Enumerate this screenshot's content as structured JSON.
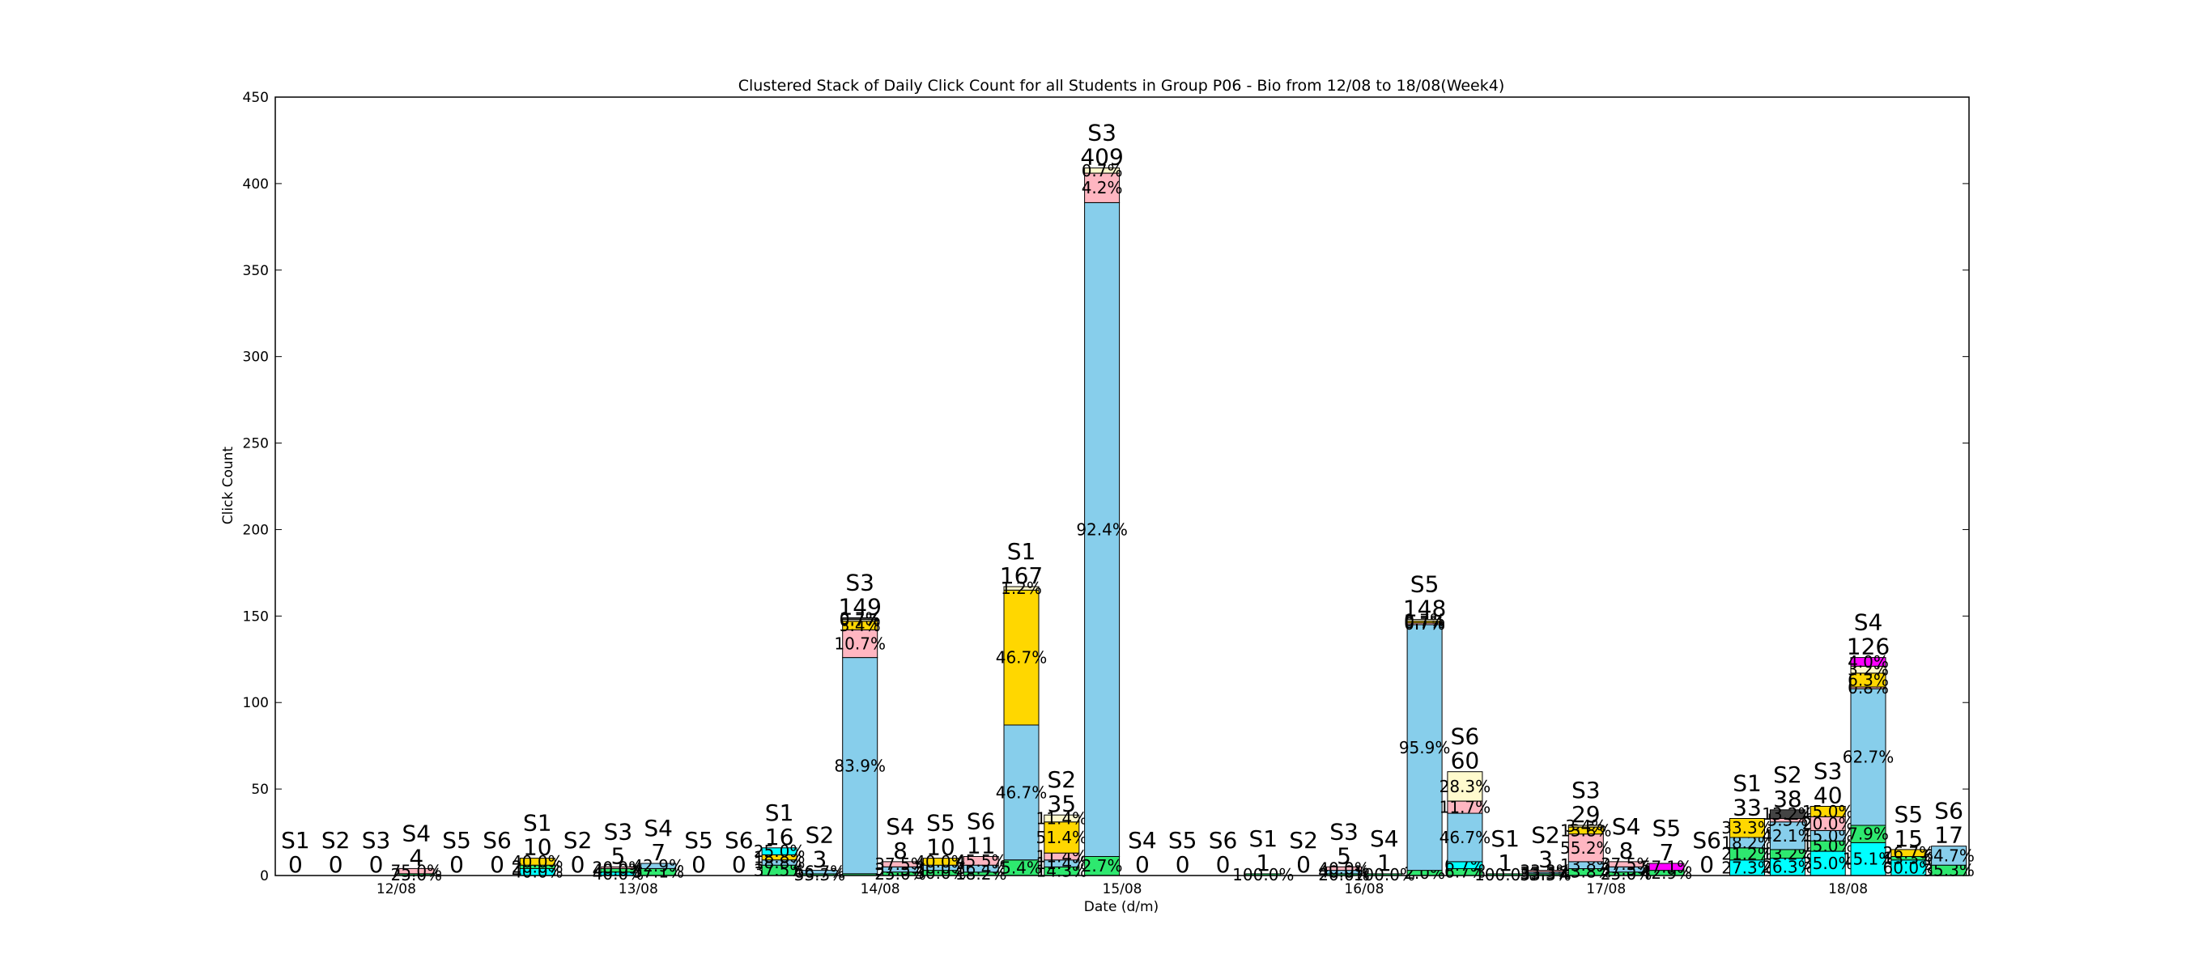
{
  "chart_data": {
    "type": "bar",
    "stacked": true,
    "clustered": true,
    "title": "Clustered Stack of Daily Click Count for all Students in Group P06 - Bio from 12/08 to 18/08(Week4)",
    "xlabel": "Date (d/m)",
    "ylabel": "Click Count",
    "ylim": [
      0,
      450
    ],
    "yticks": [
      0,
      50,
      100,
      150,
      200,
      250,
      300,
      350,
      400,
      450
    ],
    "grid": false,
    "categories": [
      "12/08",
      "13/08",
      "14/08",
      "15/08",
      "16/08",
      "17/08",
      "18/08"
    ],
    "students": [
      "S1",
      "S2",
      "S3",
      "S4",
      "S5",
      "S6"
    ],
    "segment_colors": [
      "#00FFFF",
      "#2EE86F",
      "#87CEEB",
      "#FFB6C1",
      "#FFD700",
      "#FFFACD",
      "#444444",
      "#FF00FF"
    ],
    "groups": [
      {
        "date": "12/08",
        "bars": [
          {
            "student": "S1",
            "total": "0",
            "segments": []
          },
          {
            "student": "S2",
            "total": "0",
            "segments": []
          },
          {
            "student": "S3",
            "total": "0",
            "segments": []
          },
          {
            "student": "S4",
            "total": "4",
            "segments": [
              {
                "value": 1,
                "color": 1,
                "label": "25.0%"
              },
              {
                "value": 3,
                "color": 3,
                "label": "75.0%"
              }
            ]
          },
          {
            "student": "S5",
            "total": "0",
            "segments": []
          },
          {
            "student": "S6",
            "total": "0",
            "segments": []
          }
        ]
      },
      {
        "date": "13/08",
        "bars": [
          {
            "student": "S1",
            "total": "10",
            "segments": [
              {
                "value": 4,
                "color": 0,
                "label": "40.0%"
              },
              {
                "value": 2,
                "color": 1,
                "label": "20.0%"
              },
              {
                "value": 4,
                "color": 4,
                "label": "40.0%"
              }
            ]
          },
          {
            "student": "S2",
            "total": "0",
            "segments": []
          },
          {
            "student": "S3",
            "total": "5",
            "segments": [
              {
                "value": 2,
                "color": 0,
                "label": "40.0%"
              },
              {
                "value": 2,
                "color": 1,
                "label": "40.0%"
              },
              {
                "value": 1,
                "color": 3,
                "label": "20.0%"
              }
            ]
          },
          {
            "student": "S4",
            "total": "7",
            "segments": [
              {
                "value": 4,
                "color": 1,
                "label": "57.1%"
              },
              {
                "value": 3,
                "color": 2,
                "label": "42.9%"
              }
            ]
          },
          {
            "student": "S5",
            "total": "0",
            "segments": []
          },
          {
            "student": "S6",
            "total": "0",
            "segments": []
          }
        ]
      },
      {
        "date": "14/08",
        "bars": [
          {
            "student": "S1",
            "total": "16",
            "segments": [
              {
                "value": 6,
                "color": 1,
                "label": "37.5%"
              },
              {
                "value": 3,
                "color": 2,
                "label": "18.8%"
              },
              {
                "value": 3,
                "color": 4,
                "label": "18.8%"
              },
              {
                "value": 4,
                "color": 0,
                "label": "25.0%"
              }
            ]
          },
          {
            "student": "S2",
            "total": "3",
            "segments": [
              {
                "value": 1,
                "color": 1,
                "label": "33.3%"
              },
              {
                "value": 2,
                "color": 2,
                "label": "66.7%"
              }
            ]
          },
          {
            "student": "S3",
            "total": "149",
            "segments": [
              {
                "value": 1,
                "color": 1,
                "label": ""
              },
              {
                "value": 125,
                "color": 2,
                "label": "83.9%"
              },
              {
                "value": 16,
                "color": 3,
                "label": "10.7%"
              },
              {
                "value": 5,
                "color": 4,
                "label": "3.4%"
              },
              {
                "value": 1,
                "color": 5,
                "label": "0.7%"
              },
              {
                "value": 1,
                "color": 6,
                "label": "0.7%"
              }
            ]
          },
          {
            "student": "S4",
            "total": "8",
            "segments": [
              {
                "value": 2,
                "color": 1,
                "label": "25.0%"
              },
              {
                "value": 3,
                "color": 2,
                "label": "37.5%"
              },
              {
                "value": 3,
                "color": 3,
                "label": "37.5%"
              }
            ]
          },
          {
            "student": "S5",
            "total": "10",
            "segments": [
              {
                "value": 3,
                "color": 1,
                "label": "30.0%"
              },
              {
                "value": 3,
                "color": 2,
                "label": "30.0%"
              },
              {
                "value": 4,
                "color": 4,
                "label": "40.0%"
              }
            ]
          },
          {
            "student": "S6",
            "total": "11",
            "segments": [
              {
                "value": 2,
                "color": 1,
                "label": "18.2%"
              },
              {
                "value": 4,
                "color": 2,
                "label": "36.4%"
              },
              {
                "value": 5,
                "color": 3,
                "label": "45.5%"
              }
            ]
          }
        ]
      },
      {
        "date": "15/08",
        "bars": [
          {
            "student": "S1",
            "total": "167",
            "segments": [
              {
                "value": 9,
                "color": 1,
                "label": "5.4%"
              },
              {
                "value": 78,
                "color": 2,
                "label": "46.7%"
              },
              {
                "value": 78,
                "color": 4,
                "label": "46.7%"
              },
              {
                "value": 2,
                "color": 5,
                "label": "1.2%"
              }
            ]
          },
          {
            "student": "S2",
            "total": "35",
            "segments": [
              {
                "value": 5,
                "color": 1,
                "label": "14.3%"
              },
              {
                "value": 4,
                "color": 2,
                "label": "11.4%"
              },
              {
                "value": 4,
                "color": 3,
                "label": "11.4%"
              },
              {
                "value": 18,
                "color": 4,
                "label": "51.4%"
              },
              {
                "value": 4,
                "color": 5,
                "label": "11.4%"
              }
            ]
          },
          {
            "student": "S3",
            "total": "409",
            "segments": [
              {
                "value": 11,
                "color": 1,
                "label": "2.7%"
              },
              {
                "value": 378,
                "color": 2,
                "label": "92.4%"
              },
              {
                "value": 17,
                "color": 3,
                "label": "4.2%"
              },
              {
                "value": 3,
                "color": 5,
                "label": "0.7%"
              }
            ]
          },
          {
            "student": "S4",
            "total": "0",
            "segments": []
          },
          {
            "student": "S5",
            "total": "0",
            "segments": []
          },
          {
            "student": "S6",
            "total": "0",
            "segments": []
          }
        ]
      },
      {
        "date": "16/08",
        "bars": [
          {
            "student": "S1",
            "total": "1",
            "segments": [
              {
                "value": 1,
                "color": 1,
                "label": "100.0%"
              }
            ]
          },
          {
            "student": "S2",
            "total": "0",
            "segments": []
          },
          {
            "student": "S3",
            "total": "5",
            "segments": [
              {
                "value": 1,
                "color": 1,
                "label": "20.0%"
              },
              {
                "value": 2,
                "color": 2,
                "label": "40.0%"
              },
              {
                "value": 2,
                "color": 3,
                "label": "40.0%"
              }
            ]
          },
          {
            "student": "S4",
            "total": "1",
            "segments": [
              {
                "value": 1,
                "color": 1,
                "label": "100.0%"
              }
            ]
          },
          {
            "student": "S5",
            "total": "148",
            "segments": [
              {
                "value": 3,
                "color": 1,
                "label": "2.0%"
              },
              {
                "value": 142,
                "color": 2,
                "label": "95.9%"
              },
              {
                "value": 1,
                "color": 3,
                "label": "0.7%"
              },
              {
                "value": 1,
                "color": 4,
                "label": "0.7%"
              },
              {
                "value": 1,
                "color": 5,
                "label": "0.7%"
              }
            ]
          },
          {
            "student": "S6",
            "total": "60",
            "segments": [
              {
                "value": 4,
                "color": 1,
                "label": "6.7%"
              },
              {
                "value": 4,
                "color": 0,
                "label": "6.7%"
              },
              {
                "value": 28,
                "color": 2,
                "label": "46.7%"
              },
              {
                "value": 7,
                "color": 3,
                "label": "11.7%"
              },
              {
                "value": 17,
                "color": 5,
                "label": "28.3%"
              }
            ]
          }
        ]
      },
      {
        "date": "17/08",
        "bars": [
          {
            "student": "S1",
            "total": "1",
            "segments": [
              {
                "value": 1,
                "color": 1,
                "label": "100.0%"
              }
            ]
          },
          {
            "student": "S2",
            "total": "3",
            "segments": [
              {
                "value": 1,
                "color": 1,
                "label": "33.3%"
              },
              {
                "value": 1,
                "color": 2,
                "label": "33.3%"
              },
              {
                "value": 1,
                "color": 3,
                "label": "33.3%"
              }
            ]
          },
          {
            "student": "S3",
            "total": "29",
            "segments": [
              {
                "value": 4,
                "color": 1,
                "label": "13.8%"
              },
              {
                "value": 4,
                "color": 2,
                "label": "13.8%"
              },
              {
                "value": 16,
                "color": 3,
                "label": "55.2%"
              },
              {
                "value": 4,
                "color": 4,
                "label": "13.8%"
              },
              {
                "value": 1,
                "color": 5,
                "label": "3.4%"
              }
            ]
          },
          {
            "student": "S4",
            "total": "8",
            "segments": [
              {
                "value": 2,
                "color": 1,
                "label": "25.0%"
              },
              {
                "value": 3,
                "color": 2,
                "label": "37.5%"
              },
              {
                "value": 3,
                "color": 3,
                "label": "37.5%"
              }
            ]
          },
          {
            "student": "S5",
            "total": "7",
            "segments": [
              {
                "value": 3,
                "color": 1,
                "label": "42.9%"
              },
              {
                "value": 4,
                "color": 7,
                "label": "57.1%"
              }
            ]
          },
          {
            "student": "S6",
            "total": "0",
            "segments": []
          }
        ]
      },
      {
        "date": "18/08",
        "bars": [
          {
            "student": "S1",
            "total": "33",
            "segments": [
              {
                "value": 9,
                "color": 0,
                "label": "27.3%"
              },
              {
                "value": 7,
                "color": 1,
                "label": "21.2%"
              },
              {
                "value": 6,
                "color": 2,
                "label": "18.2%"
              },
              {
                "value": 11,
                "color": 4,
                "label": "33.3%"
              }
            ]
          },
          {
            "student": "S2",
            "total": "38",
            "segments": [
              {
                "value": 10,
                "color": 0,
                "label": "26.3%"
              },
              {
                "value": 5,
                "color": 1,
                "label": "13.2%"
              },
              {
                "value": 16,
                "color": 2,
                "label": "42.1%"
              },
              {
                "value": 2,
                "color": 3,
                "label": "5.3%"
              },
              {
                "value": 5,
                "color": 6,
                "label": "13.2%"
              }
            ]
          },
          {
            "student": "S3",
            "total": "40",
            "segments": [
              {
                "value": 14,
                "color": 0,
                "label": "35.0%"
              },
              {
                "value": 6,
                "color": 1,
                "label": "15.0%"
              },
              {
                "value": 6,
                "color": 2,
                "label": "15.0%"
              },
              {
                "value": 8,
                "color": 3,
                "label": "20.0%"
              },
              {
                "value": 6,
                "color": 4,
                "label": "15.0%"
              }
            ]
          },
          {
            "student": "S4",
            "total": "126",
            "segments": [
              {
                "value": 19,
                "color": 0,
                "label": "15.1%"
              },
              {
                "value": 10,
                "color": 1,
                "label": "7.9%"
              },
              {
                "value": 79,
                "color": 2,
                "label": "62.7%"
              },
              {
                "value": 1,
                "color": 3,
                "label": "0.8%"
              },
              {
                "value": 8,
                "color": 4,
                "label": "6.3%"
              },
              {
                "value": 4,
                "color": 5,
                "label": "3.2%"
              },
              {
                "value": 5,
                "color": 7,
                "label": "4.0%"
              }
            ]
          },
          {
            "student": "S5",
            "total": "15",
            "segments": [
              {
                "value": 9,
                "color": 0,
                "label": "60.0%"
              },
              {
                "value": 2,
                "color": 1,
                "label": "13.3%"
              },
              {
                "value": 4,
                "color": 4,
                "label": "26.7%"
              }
            ]
          },
          {
            "student": "S6",
            "total": "17",
            "segments": [
              {
                "value": 6,
                "color": 1,
                "label": "35.3%"
              },
              {
                "value": 11,
                "color": 2,
                "label": "64.7%"
              }
            ]
          }
        ]
      }
    ]
  }
}
